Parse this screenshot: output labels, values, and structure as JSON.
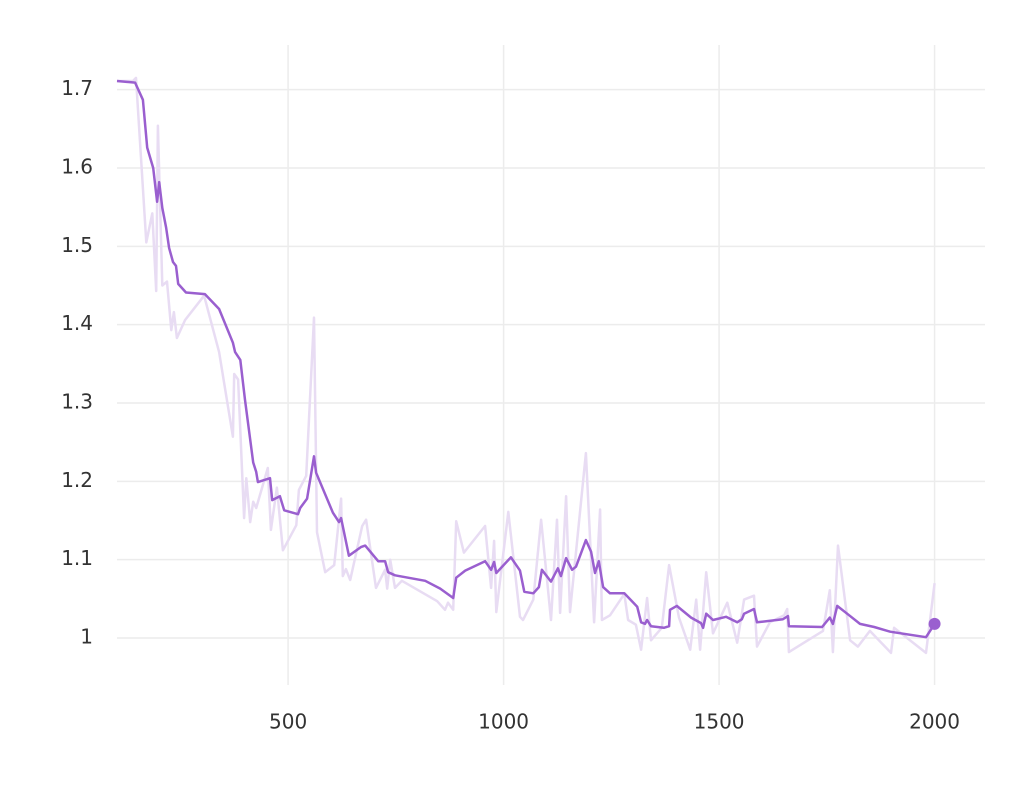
{
  "chart_data": {
    "type": "line",
    "xlim": [
      103,
      2117
    ],
    "ylim": [
      0.94,
      1.757
    ],
    "xticks": [
      500,
      1000,
      1500,
      2000
    ],
    "yticks": [
      1,
      1.1,
      1.2,
      1.3,
      1.4,
      1.5,
      1.6,
      1.7
    ],
    "grid": true,
    "series": [
      {
        "color": "#e8dcf3",
        "width": 2.5,
        "x": [
          103,
          140,
          147,
          171,
          185,
          194,
          198,
          208,
          219,
          229,
          235,
          242,
          261,
          305,
          340,
          372,
          375,
          384,
          398,
          403,
          412,
          419,
          426,
          453,
          460,
          474,
          488,
          519,
          525,
          542,
          560,
          567,
          586,
          607,
          623,
          627,
          634,
          644,
          672,
          681,
          704,
          725,
          730,
          737,
          748,
          764,
          846,
          864,
          871,
          883,
          890,
          908,
          957,
          971,
          978,
          983,
          1011,
          1038,
          1045,
          1069,
          1087,
          1110,
          1124,
          1131,
          1145,
          1154,
          1191,
          1210,
          1224,
          1228,
          1247,
          1280,
          1289,
          1307,
          1319,
          1333,
          1342,
          1367,
          1384,
          1407,
          1433,
          1447,
          1456,
          1470,
          1486,
          1519,
          1542,
          1558,
          1581,
          1588,
          1618,
          1651,
          1658,
          1662,
          1741,
          1757,
          1764,
          1776,
          1804,
          1822,
          1850,
          1899,
          1906,
          1980,
          2000
        ],
        "values": [
          1.711,
          1.711,
          1.715,
          1.505,
          1.542,
          1.443,
          1.654,
          1.45,
          1.455,
          1.393,
          1.416,
          1.383,
          1.406,
          1.437,
          1.365,
          1.257,
          1.337,
          1.33,
          1.153,
          1.204,
          1.148,
          1.174,
          1.166,
          1.217,
          1.138,
          1.192,
          1.112,
          1.144,
          1.189,
          1.207,
          1.409,
          1.135,
          1.084,
          1.093,
          1.178,
          1.079,
          1.088,
          1.074,
          1.143,
          1.151,
          1.064,
          1.087,
          1.063,
          1.1,
          1.064,
          1.073,
          1.047,
          1.036,
          1.045,
          1.036,
          1.149,
          1.109,
          1.143,
          1.064,
          1.124,
          1.033,
          1.161,
          1.027,
          1.023,
          1.049,
          1.151,
          1.023,
          1.151,
          1.032,
          1.181,
          1.033,
          1.236,
          1.02,
          1.164,
          1.023,
          1.029,
          1.056,
          1.023,
          1.017,
          0.985,
          1.051,
          0.997,
          1.013,
          1.093,
          1.026,
          0.985,
          1.049,
          0.985,
          1.084,
          1.006,
          1.045,
          0.994,
          1.049,
          1.054,
          0.989,
          1.02,
          1.029,
          1.037,
          0.982,
          1.009,
          1.061,
          0.982,
          1.118,
          0.997,
          0.989,
          1.009,
          0.981,
          1.013,
          0.981,
          1.07
        ]
      },
      {
        "color": "#9a5fcf",
        "width": 2.5,
        "marker": true,
        "x": [
          103,
          145,
          163,
          173,
          187,
          196,
          201,
          208,
          217,
          224,
          233,
          240,
          245,
          263,
          307,
          340,
          372,
          377,
          389,
          400,
          419,
          426,
          430,
          458,
          463,
          481,
          491,
          523,
          528,
          544,
          560,
          565,
          604,
          618,
          623,
          641,
          669,
          679,
          709,
          725,
          732,
          748,
          818,
          853,
          883,
          890,
          911,
          957,
          971,
          978,
          983,
          1017,
          1038,
          1048,
          1069,
          1082,
          1089,
          1110,
          1126,
          1133,
          1145,
          1159,
          1168,
          1191,
          1203,
          1212,
          1221,
          1231,
          1247,
          1280,
          1310,
          1319,
          1328,
          1333,
          1342,
          1372,
          1384,
          1386,
          1402,
          1435,
          1458,
          1463,
          1470,
          1486,
          1516,
          1542,
          1553,
          1558,
          1581,
          1588,
          1648,
          1660,
          1662,
          1739,
          1757,
          1764,
          1774,
          1802,
          1827,
          1860,
          1897,
          1980,
          2000
        ],
        "values": [
          1.711,
          1.709,
          1.687,
          1.626,
          1.6,
          1.557,
          1.582,
          1.549,
          1.524,
          1.498,
          1.48,
          1.475,
          1.452,
          1.441,
          1.439,
          1.42,
          1.377,
          1.365,
          1.355,
          1.304,
          1.224,
          1.212,
          1.199,
          1.204,
          1.176,
          1.181,
          1.163,
          1.158,
          1.166,
          1.178,
          1.232,
          1.211,
          1.16,
          1.148,
          1.153,
          1.105,
          1.116,
          1.118,
          1.098,
          1.098,
          1.084,
          1.08,
          1.073,
          1.063,
          1.051,
          1.077,
          1.086,
          1.098,
          1.087,
          1.097,
          1.083,
          1.103,
          1.086,
          1.059,
          1.057,
          1.065,
          1.087,
          1.072,
          1.089,
          1.079,
          1.102,
          1.087,
          1.091,
          1.125,
          1.11,
          1.083,
          1.098,
          1.065,
          1.057,
          1.057,
          1.04,
          1.02,
          1.018,
          1.023,
          1.015,
          1.013,
          1.015,
          1.036,
          1.041,
          1.026,
          1.019,
          1.013,
          1.031,
          1.023,
          1.027,
          1.02,
          1.024,
          1.031,
          1.037,
          1.02,
          1.024,
          1.028,
          1.015,
          1.014,
          1.026,
          1.018,
          1.041,
          1.029,
          1.018,
          1.014,
          1.008,
          1.001,
          1.018
        ]
      }
    ]
  }
}
